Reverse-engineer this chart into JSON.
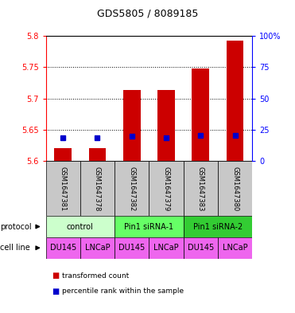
{
  "title": "GDS5805 / 8089185",
  "samples": [
    "GSM1647381",
    "GSM1647378",
    "GSM1647382",
    "GSM1647379",
    "GSM1647383",
    "GSM1647380"
  ],
  "red_values": [
    5.621,
    5.621,
    5.714,
    5.714,
    5.748,
    5.793
  ],
  "blue_values": [
    5.637,
    5.637,
    5.64,
    5.638,
    5.641,
    5.641
  ],
  "ylim": [
    5.6,
    5.8
  ],
  "yticks_left": [
    5.6,
    5.65,
    5.7,
    5.75,
    5.8
  ],
  "yticks_right": [
    0,
    25,
    50,
    75,
    100
  ],
  "ytick_labels_left": [
    "5.6",
    "5.65",
    "5.7",
    "5.75",
    "5.8"
  ],
  "ytick_labels_right": [
    "0",
    "25",
    "50",
    "75",
    "100%"
  ],
  "protocols": [
    {
      "label": "control",
      "cols": [
        0,
        1
      ],
      "color": "#ccffcc"
    },
    {
      "label": "Pin1 siRNA-1",
      "cols": [
        2,
        3
      ],
      "color": "#66ff66"
    },
    {
      "label": "Pin1 siRNA-2",
      "cols": [
        4,
        5
      ],
      "color": "#33cc33"
    }
  ],
  "cell_lines": [
    "DU145",
    "LNCaP",
    "DU145",
    "LNCaP",
    "DU145",
    "LNCaP"
  ],
  "cell_line_color": "#ee66ee",
  "sample_bg_color": "#c8c8c8",
  "red_color": "#cc0000",
  "blue_color": "#0000cc",
  "left_axis_color": "red",
  "right_axis_color": "blue",
  "bar_width": 0.5
}
